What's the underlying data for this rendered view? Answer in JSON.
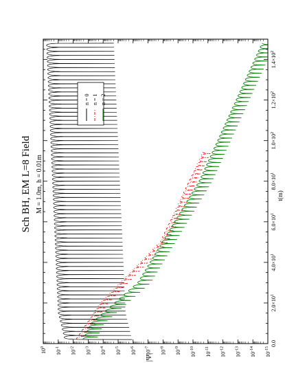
{
  "chart_data": {
    "type": "line",
    "title": "Sch BH, EM L=8 Field",
    "subtitle": "M = 1.0m, h = 0.01m",
    "xlabel": "t(m)",
    "ylabel": "|Ψ|",
    "xlim": [
      0,
      150
    ],
    "ylim_exponent": [
      -15,
      0
    ],
    "log_y": true,
    "orientation": "rotated-90-ccw",
    "grid": false,
    "legend_position": "top-right",
    "x_ticks": [
      {
        "value": 0,
        "mant": "0.0",
        "exp": ""
      },
      {
        "value": 20,
        "mant": "2.0×10",
        "exp": "1"
      },
      {
        "value": 40,
        "mant": "4.0×10",
        "exp": "1"
      },
      {
        "value": 60,
        "mant": "6.0×10",
        "exp": "1"
      },
      {
        "value": 80,
        "mant": "8.0×10",
        "exp": "1"
      },
      {
        "value": 100,
        "mant": "1.0×10",
        "exp": "2"
      },
      {
        "value": 120,
        "mant": "1.2×10",
        "exp": "2"
      },
      {
        "value": 140,
        "mant": "1.4×10",
        "exp": "2"
      }
    ],
    "y_ticks": [
      {
        "value": 0,
        "mant": "10",
        "exp": "0"
      },
      {
        "value": -1,
        "mant": "10",
        "exp": "-1"
      },
      {
        "value": -2,
        "mant": "10",
        "exp": "-2"
      },
      {
        "value": -3,
        "mant": "10",
        "exp": "-3"
      },
      {
        "value": -4,
        "mant": "10",
        "exp": "-4"
      },
      {
        "value": -5,
        "mant": "10",
        "exp": "-5"
      },
      {
        "value": -6,
        "mant": "10",
        "exp": "-6"
      },
      {
        "value": -7,
        "mant": "10",
        "exp": "-7"
      },
      {
        "value": -8,
        "mant": "10",
        "exp": "-8"
      },
      {
        "value": -9,
        "mant": "10",
        "exp": "-9"
      },
      {
        "value": -10,
        "mant": "10",
        "exp": "-10"
      },
      {
        "value": -11,
        "mant": "10",
        "exp": "-11"
      },
      {
        "value": -12,
        "mant": "10",
        "exp": "-12"
      },
      {
        "value": -13,
        "mant": "10",
        "exp": "-13"
      },
      {
        "value": -14,
        "mant": "10",
        "exp": "-14"
      },
      {
        "value": -15,
        "mant": "10",
        "exp": "-15"
      }
    ],
    "series": [
      {
        "name": "n = 0",
        "color": "#000000",
        "dash": "solid",
        "envelope_log10": [
          [
            0,
            -1.5
          ],
          [
            15,
            -1.0
          ],
          [
            150,
            -0.2
          ]
        ],
        "dip_depth_log10": 4.5,
        "oscillation_period": 2.0,
        "t_range": [
          2,
          148
        ]
      },
      {
        "name": "n = 1",
        "color": "#ff0000",
        "dash": "dashdot",
        "envelope_log10": [
          [
            0,
            -2.0
          ],
          [
            20,
            -3.8
          ],
          [
            50,
            -7.8
          ],
          [
            95,
            -10.7
          ]
        ],
        "dip_depth_log10": 2.2,
        "oscillation_period": 2.0,
        "t_range": [
          2,
          95
        ]
      },
      {
        "name": "n = 2",
        "color": "#008000",
        "dash": "solid",
        "envelope_log10": [
          [
            0,
            -2.5
          ],
          [
            10,
            -3.2
          ],
          [
            30,
            -6.3
          ],
          [
            80,
            -10.4
          ],
          [
            148,
            -14.6
          ]
        ],
        "dip_depth_log10": 3.0,
        "oscillation_period": 2.0,
        "t_range": [
          2,
          148
        ]
      }
    ]
  }
}
